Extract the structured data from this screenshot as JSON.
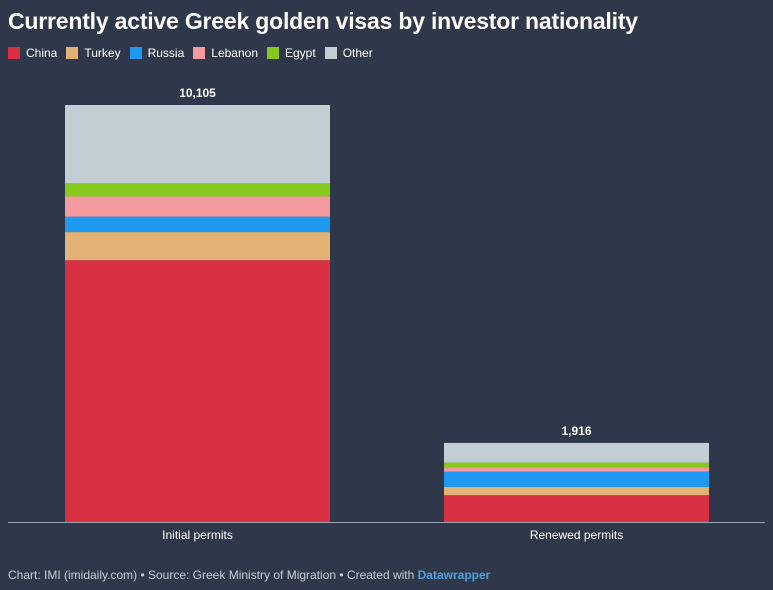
{
  "chart_data": {
    "type": "bar",
    "stacked": true,
    "title": "Currently active Greek golden visas by investor nationality",
    "categories": [
      "Initial permits",
      "Renewed permits"
    ],
    "totals": [
      10105,
      1916
    ],
    "total_labels": [
      "10,105",
      "1,916"
    ],
    "series": [
      {
        "name": "China",
        "color": "#d93144",
        "values": [
          6345,
          650
        ]
      },
      {
        "name": "Turkey",
        "color": "#e2b374",
        "values": [
          680,
          200
        ]
      },
      {
        "name": "Russia",
        "color": "#1e9bf0",
        "values": [
          375,
          370
        ]
      },
      {
        "name": "Lebanon",
        "color": "#f59aa0",
        "values": [
          490,
          100
        ]
      },
      {
        "name": "Egypt",
        "color": "#84c91c",
        "values": [
          315,
          120
        ]
      },
      {
        "name": "Other",
        "color": "#c2ced3",
        "values": [
          1900,
          476
        ]
      }
    ],
    "ylim": [
      0,
      10105
    ],
    "legend": "top-left"
  },
  "footer": {
    "text": "Chart: IMI (imidaily.com) • Source: Greek Ministry of Migration • Created with ",
    "link": "Datawrapper"
  }
}
